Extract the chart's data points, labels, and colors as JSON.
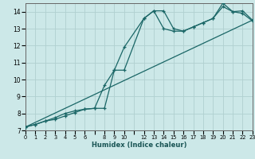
{
  "xlabel": "Humidex (Indice chaleur)",
  "bg_color": "#cce8e8",
  "grid_color": "#b0d0d0",
  "line_color": "#1a6666",
  "line1_x": [
    0,
    1,
    2,
    3,
    4,
    5,
    6,
    7,
    8,
    9,
    10,
    12,
    13,
    14,
    15,
    16,
    17,
    18,
    19,
    20,
    21,
    22,
    23
  ],
  "line1_y": [
    7.2,
    7.35,
    7.55,
    7.75,
    8.0,
    8.15,
    8.25,
    8.3,
    9.65,
    10.55,
    11.9,
    13.6,
    14.05,
    14.05,
    13.0,
    12.85,
    13.1,
    13.35,
    13.6,
    14.5,
    14.0,
    14.05,
    13.5
  ],
  "line2_x": [
    0,
    1,
    2,
    3,
    4,
    5,
    6,
    7,
    8,
    9,
    10,
    12,
    13,
    14,
    15,
    16,
    17,
    18,
    19,
    20,
    21,
    22,
    23
  ],
  "line2_y": [
    7.2,
    7.35,
    7.55,
    7.65,
    7.85,
    8.05,
    8.25,
    8.3,
    8.3,
    10.55,
    10.55,
    13.6,
    14.05,
    13.0,
    12.85,
    12.85,
    13.1,
    13.35,
    13.6,
    14.3,
    14.0,
    13.9,
    13.45
  ],
  "line3_x": [
    0,
    23
  ],
  "line3_y": [
    7.2,
    13.5
  ],
  "xlim": [
    0,
    23
  ],
  "ylim": [
    7.0,
    14.5
  ],
  "yticks": [
    7,
    8,
    9,
    10,
    11,
    12,
    13,
    14
  ],
  "xtick_labels": [
    "0",
    "1",
    "2",
    "3",
    "4",
    "5",
    "6",
    "",
    "8",
    "9",
    "10",
    "",
    "12",
    "13",
    "14",
    "15",
    "16",
    "17",
    "18",
    "19",
    "20",
    "21",
    "22",
    "23"
  ]
}
